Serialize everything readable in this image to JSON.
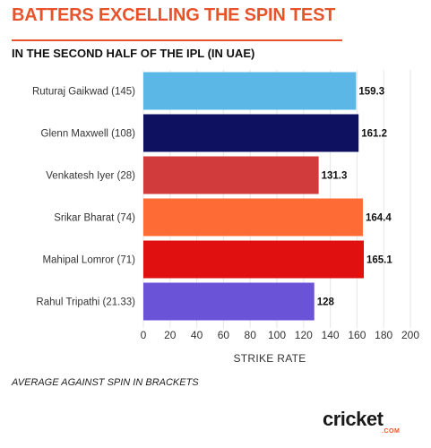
{
  "header": {
    "title": "BATTERS EXCELLING THE SPIN TEST",
    "subtitle": "IN THE SECOND HALF OF THE IPL (IN UAE)"
  },
  "footnote": "AVERAGE AGAINST SPIN IN BRACKETS",
  "logo": {
    "text": "cricket",
    "sub": ".COM"
  },
  "chart_data": {
    "type": "bar",
    "orientation": "horizontal",
    "categories": [
      "Ruturaj Gaikwad (145)",
      "Glenn Maxwell (108)",
      "Venkatesh Iyer (28)",
      "Srikar Bharat (74)",
      "Mahipal Lomror (71)",
      "Rahul Tripathi (21.33)"
    ],
    "values": [
      159.3,
      161.2,
      131.3,
      164.4,
      165.1,
      128
    ],
    "value_labels": [
      "159.3",
      "161.2",
      "131.3",
      "164.4",
      "165.1",
      "128"
    ],
    "colors": [
      "#5ab7e6",
      "#0d1160",
      "#d13b3b",
      "#ff6b35",
      "#e01010",
      "#6b53d8"
    ],
    "xlabel": "STRIKE RATE",
    "xlim": [
      0,
      200
    ],
    "xticks": [
      0,
      20,
      40,
      60,
      80,
      100,
      120,
      140,
      160,
      180,
      200
    ],
    "grid": true,
    "gridline_color": "#e6e6e6"
  }
}
